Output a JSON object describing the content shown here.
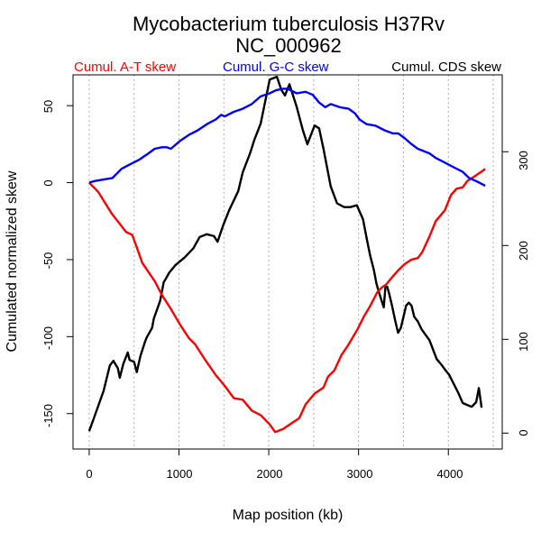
{
  "chart_data": {
    "type": "line",
    "title": "Mycobacterium tuberculosis H37Rv",
    "subtitle": "NC_000962",
    "xlabel": "Map position (kb)",
    "ylabel": "Cumulated normalized skew",
    "xlim": [
      -180,
      4600
    ],
    "ylim_left": [
      -173,
      70
    ],
    "ylim_right": [
      -17,
      382
    ],
    "x_ticks": [
      "0",
      "1000",
      "2000",
      "3000",
      "4000"
    ],
    "x_tick_values": [
      0,
      1000,
      2000,
      3000,
      4000
    ],
    "y_left_ticks": [
      "50",
      "0",
      "-50",
      "-100",
      "-150"
    ],
    "y_left_tick_values": [
      50,
      0,
      -50,
      -100,
      -150
    ],
    "y_right_ticks": [
      "300",
      "200",
      "100",
      "0"
    ],
    "y_right_tick_values": [
      300,
      200,
      100,
      0
    ],
    "grid": "vertical dotted every 500 kb",
    "legend_placement": "top",
    "series": [
      {
        "name": "Cumul. A-T skew",
        "axis": "left",
        "color": "#ff0000",
        "x": [
          0,
          100,
          250,
          410,
          480,
          530,
          590,
          660,
          730,
          810,
          910,
          1010,
          1110,
          1180,
          1290,
          1410,
          1510,
          1610,
          1710,
          1810,
          1910,
          2010,
          2070,
          2160,
          2260,
          2340,
          2410,
          2510,
          2610,
          2660,
          2730,
          2810,
          2890,
          2990,
          3060,
          3130,
          3210,
          3260,
          3310,
          3380,
          3440,
          3510,
          3590,
          3660,
          3710,
          3790,
          3860,
          3960,
          4030,
          4090,
          4160,
          4210,
          4290,
          4390,
          4410
        ],
        "y": [
          0,
          -6,
          -20,
          -32,
          -34,
          -42,
          -52,
          -58,
          -64,
          -73,
          -82,
          -92,
          -101,
          -105,
          -115,
          -125,
          -132,
          -140,
          -141,
          -148,
          -151,
          -157,
          -162,
          -160,
          -156,
          -153,
          -144,
          -137,
          -133,
          -126,
          -122,
          -112,
          -105,
          -95,
          -87,
          -80,
          -71,
          -68,
          -66,
          -61,
          -57,
          -53,
          -50,
          -49,
          -45,
          -35,
          -25,
          -18,
          -8,
          -4,
          -3,
          1,
          4,
          8,
          9
        ]
      },
      {
        "name": "Cumul. G-C skew",
        "axis": "left",
        "color": "#0000ff",
        "x": [
          0,
          60,
          160,
          260,
          360,
          460,
          560,
          660,
          730,
          810,
          860,
          910,
          1010,
          1110,
          1210,
          1310,
          1410,
          1470,
          1510,
          1610,
          1710,
          1810,
          1910,
          2010,
          2080,
          2160,
          2210,
          2310,
          2410,
          2490,
          2560,
          2630,
          2690,
          2790,
          2890,
          2960,
          3010,
          3090,
          3190,
          3290,
          3380,
          3440,
          3510,
          3590,
          3660,
          3790,
          3860,
          3960,
          4060,
          4160,
          4230,
          4310,
          4410
        ],
        "y": [
          0,
          1,
          2,
          3,
          9,
          12,
          15,
          19,
          22,
          23,
          23,
          22,
          27,
          31,
          34,
          38,
          41,
          44,
          43,
          46,
          48,
          51,
          56,
          58,
          60,
          61,
          61,
          58,
          59,
          57,
          52,
          49,
          51,
          49,
          48,
          45,
          41,
          38,
          37,
          34,
          32,
          32,
          29,
          25,
          22,
          19,
          16,
          13,
          10,
          7,
          3,
          1,
          -2
        ]
      },
      {
        "name": "Cumul. CDS skew",
        "axis": "right",
        "color": "#000000",
        "x": [
          0,
          60,
          160,
          230,
          270,
          320,
          340,
          380,
          430,
          450,
          500,
          530,
          570,
          620,
          640,
          700,
          720,
          790,
          830,
          850,
          890,
          960,
          1060,
          1160,
          1230,
          1310,
          1390,
          1430,
          1490,
          1560,
          1660,
          1710,
          1790,
          1840,
          1910,
          2010,
          2090,
          2140,
          2180,
          2230,
          2260,
          2310,
          2380,
          2430,
          2470,
          2510,
          2560,
          2610,
          2690,
          2760,
          2840,
          2910,
          2980,
          3050,
          3090,
          3130,
          3170,
          3200,
          3230,
          3280,
          3300,
          3320,
          3340,
          3370,
          3410,
          3440,
          3470,
          3500,
          3530,
          3560,
          3590,
          3620,
          3660,
          3700,
          3790,
          3870,
          3930,
          3960,
          4010,
          4110,
          4160,
          4210,
          4260,
          4310,
          4340,
          4370
        ],
        "y": [
          2,
          18,
          45,
          72,
          77,
          69,
          59,
          74,
          86,
          78,
          76,
          65,
          82,
          97,
          102,
          112,
          122,
          141,
          161,
          164,
          171,
          179,
          187,
          197,
          209,
          212,
          210,
          204,
          221,
          238,
          258,
          278,
          298,
          313,
          330,
          377,
          380,
          366,
          360,
          372,
          363,
          348,
          323,
          308,
          318,
          328,
          325,
          303,
          263,
          245,
          241,
          241,
          243,
          228,
          208,
          189,
          174,
          159,
          149,
          134,
          156,
          156,
          149,
          137,
          119,
          107,
          112,
          124,
          136,
          139,
          136,
          124,
          119,
          111,
          99,
          79,
          72,
          68,
          62,
          43,
          32,
          30,
          28,
          33,
          48,
          27
        ]
      }
    ]
  }
}
